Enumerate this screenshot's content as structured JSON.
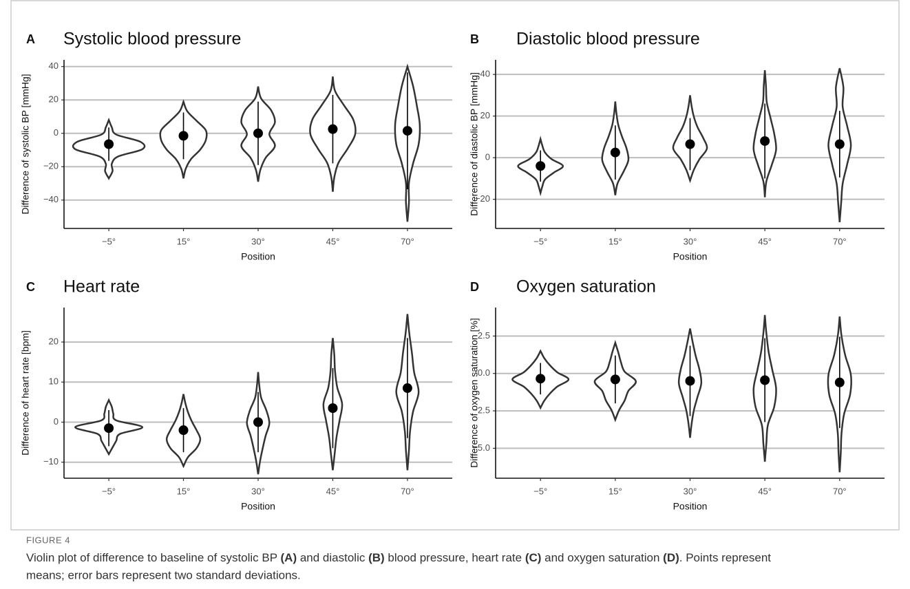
{
  "chart_data": [
    {
      "type": "violin",
      "letter": "A",
      "title": "Systolic blood pressure",
      "ylabel": "Difference of systolic BP [mmHg]",
      "xlabel": "Position",
      "categories": [
        "−5°",
        "15°",
        "30°",
        "45°",
        "70°"
      ],
      "means": [
        -6.5,
        -1.5,
        0,
        2.5,
        1.5
      ],
      "errors": [
        10,
        14,
        19,
        20.5,
        35
      ],
      "violins": [
        {
          "min": -27,
          "max": 8,
          "widths": [
            0,
            0.1,
            0.08,
            0.25,
            0.9,
            0.85,
            0.2,
            0.08,
            0
          ]
        },
        {
          "min": -27,
          "max": 19,
          "widths": [
            0,
            0.06,
            0.2,
            0.45,
            0.6,
            0.6,
            0.35,
            0.1,
            0
          ]
        },
        {
          "min": -29,
          "max": 28,
          "widths": [
            0,
            0.06,
            0.2,
            0.45,
            0.3,
            0.45,
            0.35,
            0.08,
            0
          ]
        },
        {
          "min": -35,
          "max": 34,
          "widths": [
            0,
            0.04,
            0.15,
            0.4,
            0.6,
            0.55,
            0.3,
            0.06,
            0
          ]
        },
        {
          "min": -53,
          "max": 40,
          "widths": [
            0,
            0.04,
            0.04,
            0.15,
            0.3,
            0.33,
            0.25,
            0.15,
            0
          ]
        }
      ],
      "ylim": [
        -57,
        44
      ],
      "yticks": [
        40,
        20,
        0,
        {
          "value": -20,
          "label": "−20"
        },
        {
          "value": -40,
          "label": "−40"
        }
      ],
      "grid": true
    },
    {
      "type": "violin",
      "letter": "B",
      "title": "Diastolic blood pressure",
      "ylabel": "Difference of diastolic BP [mmHg]",
      "xlabel": "Position",
      "categories": [
        "−5°",
        "15°",
        "30°",
        "45°",
        "70°"
      ],
      "means": [
        -4,
        2.5,
        6.5,
        8,
        6.5
      ],
      "errors": [
        7.5,
        13,
        12.5,
        18,
        16
      ],
      "violins": [
        {
          "min": -17,
          "max": 9,
          "widths": [
            0,
            0.05,
            0.12,
            0.35,
            0.6,
            0.3,
            0.12,
            0.05,
            0
          ]
        },
        {
          "min": -18,
          "max": 27,
          "widths": [
            0,
            0.06,
            0.22,
            0.35,
            0.3,
            0.18,
            0.08,
            0.03,
            0
          ]
        },
        {
          "min": -11,
          "max": 30,
          "widths": [
            0,
            0.1,
            0.25,
            0.45,
            0.35,
            0.2,
            0.1,
            0.04,
            0
          ]
        },
        {
          "min": -19,
          "max": 42,
          "widths": [
            0,
            0.04,
            0.18,
            0.3,
            0.25,
            0.15,
            0.05,
            0.03,
            0
          ]
        },
        {
          "min": -31,
          "max": 43,
          "widths": [
            0,
            0.04,
            0.08,
            0.2,
            0.3,
            0.2,
            0.08,
            0.1,
            0
          ]
        }
      ],
      "ylim": [
        -34,
        47
      ],
      "yticks": [
        40,
        20,
        0,
        {
          "value": -20,
          "label": "−20"
        }
      ],
      "grid": true
    },
    {
      "type": "violin",
      "letter": "C",
      "title": "Heart rate",
      "ylabel": "Difference of heart rate [bpm]",
      "xlabel": "Position",
      "categories": [
        "−5°",
        "15°",
        "30°",
        "45°",
        "70°"
      ],
      "means": [
        -1.5,
        -2,
        0,
        3.5,
        8.5
      ],
      "errors": [
        4.5,
        5.5,
        7.5,
        10,
        12.5
      ],
      "violins": [
        {
          "min": -8,
          "max": 5.5,
          "widths": [
            0,
            0.1,
            0.2,
            0.3,
            0.9,
            0.2,
            0.12,
            0.08,
            0
          ]
        },
        {
          "min": -11,
          "max": 7,
          "widths": [
            0,
            0.12,
            0.35,
            0.45,
            0.35,
            0.22,
            0.12,
            0.05,
            0
          ]
        },
        {
          "min": -13,
          "max": 12.5,
          "widths": [
            0,
            0.05,
            0.12,
            0.2,
            0.3,
            0.22,
            0.08,
            0.03,
            0
          ]
        },
        {
          "min": -12,
          "max": 21,
          "widths": [
            0,
            0.05,
            0.1,
            0.18,
            0.25,
            0.12,
            0.06,
            0.04,
            0
          ]
        },
        {
          "min": -12,
          "max": 27,
          "widths": [
            0,
            0.04,
            0.07,
            0.15,
            0.3,
            0.18,
            0.12,
            0.05,
            0
          ]
        }
      ],
      "ylim": [
        -14,
        28.6
      ],
      "yticks": [
        20,
        10,
        0,
        {
          "value": -10,
          "label": "−10"
        }
      ],
      "grid": true
    },
    {
      "type": "violin",
      "letter": "D",
      "title": "Oxygen saturation",
      "ylabel": "Difference of oxygen saturation [%]",
      "xlabel": "Position",
      "categories": [
        "−5°",
        "15°",
        "30°",
        "45°",
        "70°"
      ],
      "means": [
        -0.35,
        -0.4,
        -0.5,
        -0.45,
        -0.6
      ],
      "errors": [
        1.05,
        1.6,
        2.35,
        2.8,
        3.05
      ],
      "violins": [
        {
          "min": -2.3,
          "max": 1.5,
          "widths": [
            0,
            0.1,
            0.25,
            0.45,
            0.75,
            0.45,
            0.25,
            0.1,
            0
          ]
        },
        {
          "min": -3.1,
          "max": 2.05,
          "widths": [
            0,
            0.1,
            0.25,
            0.35,
            0.55,
            0.25,
            0.15,
            0.08,
            0
          ]
        },
        {
          "min": -4.3,
          "max": 3,
          "widths": [
            0,
            0.04,
            0.1,
            0.2,
            0.3,
            0.25,
            0.15,
            0.07,
            0
          ]
        },
        {
          "min": -5.9,
          "max": 3.9,
          "widths": [
            0,
            0.04,
            0.08,
            0.25,
            0.3,
            0.2,
            0.1,
            0.04,
            0
          ]
        },
        {
          "min": -6.6,
          "max": 3.8,
          "widths": [
            0,
            0.03,
            0.05,
            0.12,
            0.28,
            0.3,
            0.15,
            0.05,
            0
          ]
        }
      ],
      "ylim": [
        -7,
        4.4
      ],
      "yticks": [
        2.5,
        {
          "value": 0,
          "label": "0.0"
        },
        {
          "value": -2.5,
          "label": "−2.5"
        },
        {
          "value": -5,
          "label": "−5.0"
        }
      ],
      "grid": true
    }
  ],
  "caption": {
    "label": "FIGURE 4",
    "segments": [
      "Violin plot of difference to baseline of systolic BP ",
      "(A)",
      " and diastolic ",
      "(B)",
      " blood pressure, heart rate ",
      "(C)",
      " and oxygen saturation ",
      "(D)",
      ". Points represent",
      "means; error bars represent two standard deviations."
    ]
  }
}
